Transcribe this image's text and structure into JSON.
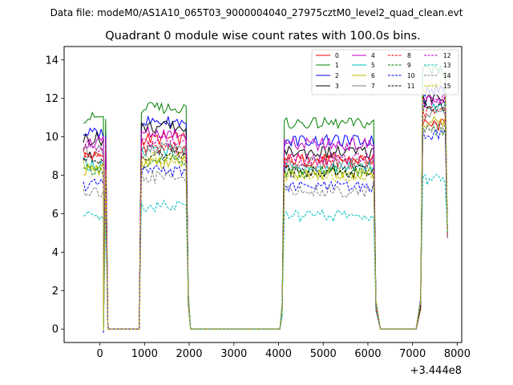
{
  "chart_data": {
    "type": "line",
    "suptitle": "Data file: modeM0/AS1A10_065T03_9000004040_27975cztM0_level2_quad_clean.evt",
    "title": "Quadrant 0 module wise count rates with 100.0s bins.",
    "xlabel": "",
    "ylabel": "",
    "x_offset_label": "+3.444e8",
    "xlim": [
      -800,
      8100
    ],
    "ylim": [
      -0.7,
      14.7
    ],
    "xticks": [
      0,
      1000,
      2000,
      3000,
      4000,
      5000,
      6000,
      7000,
      8000
    ],
    "xtick_labels": [
      "0",
      "1000",
      "2000",
      "3000",
      "4000",
      "5000",
      "6000",
      "7000",
      "8000"
    ],
    "yticks": [
      0,
      2,
      4,
      6,
      8,
      10,
      12,
      14
    ],
    "ytick_labels": [
      "0",
      "2",
      "4",
      "6",
      "8",
      "10",
      "12",
      "14"
    ],
    "legend_location": "upper right",
    "bins": {
      "segments": [
        {
          "start": -370,
          "end": 130,
          "step": 50
        },
        {
          "start": 930,
          "end": 1930,
          "step": 50
        },
        {
          "start": 4130,
          "end": 6130,
          "step": 50
        },
        {
          "start": 7230,
          "end": 7730,
          "step": 50
        }
      ],
      "edge_values": [
        [
          80,
          0.1
        ],
        [
          180,
          0
        ],
        [
          880,
          0
        ],
        [
          1980,
          1.6
        ],
        [
          2030,
          0
        ],
        [
          4030,
          0
        ],
        [
          4080,
          1
        ],
        [
          6180,
          1.2
        ],
        [
          6280,
          0
        ],
        [
          7080,
          0
        ],
        [
          7180,
          1.3
        ],
        [
          7780,
          5
        ]
      ]
    },
    "series": [
      {
        "name": "0",
        "color": "#ff0000",
        "dashed": false,
        "levels": [
          9.0,
          9.9,
          8.8,
          10.6
        ],
        "amp": 0.35
      },
      {
        "name": "1",
        "color": "#008000",
        "dashed": false,
        "levels": [
          11.0,
          11.5,
          10.7,
          13.4
        ],
        "amp": 0.3
      },
      {
        "name": "2",
        "color": "#0000ff",
        "dashed": false,
        "levels": [
          10.2,
          10.8,
          9.8,
          12.4
        ],
        "amp": 0.3
      },
      {
        "name": "3",
        "color": "#000000",
        "dashed": false,
        "levels": [
          9.9,
          10.5,
          9.2,
          12.0
        ],
        "amp": 0.35
      },
      {
        "name": "4",
        "color": "#bf00bf",
        "dashed": false,
        "levels": [
          9.7,
          10.2,
          9.6,
          11.8
        ],
        "amp": 0.35
      },
      {
        "name": "5",
        "color": "#00bfbf",
        "dashed": false,
        "levels": [
          8.6,
          9.3,
          8.4,
          11.6
        ],
        "amp": 0.35
      },
      {
        "name": "6",
        "color": "#bfbf00",
        "dashed": false,
        "levels": [
          8.3,
          8.7,
          8.1,
          10.7
        ],
        "amp": 0.35
      },
      {
        "name": "7",
        "color": "#808080",
        "dashed": false,
        "levels": [
          9.3,
          9.4,
          8.6,
          11.1
        ],
        "amp": 0.35
      },
      {
        "name": "8",
        "color": "#ff0000",
        "dashed": true,
        "levels": [
          9.1,
          9.4,
          8.7,
          11.3
        ],
        "amp": 0.35
      },
      {
        "name": "9",
        "color": "#008000",
        "dashed": true,
        "levels": [
          8.2,
          8.7,
          8.2,
          10.4
        ],
        "amp": 0.35
      },
      {
        "name": "10",
        "color": "#0000ff",
        "dashed": true,
        "levels": [
          7.5,
          8.2,
          7.4,
          10.1
        ],
        "amp": 0.3
      },
      {
        "name": "11",
        "color": "#000000",
        "dashed": true,
        "levels": [
          8.9,
          9.1,
          8.2,
          11.6
        ],
        "amp": 0.35
      },
      {
        "name": "12",
        "color": "#bf00bf",
        "dashed": true,
        "levels": [
          9.5,
          9.7,
          8.8,
          11.9
        ],
        "amp": 0.35
      },
      {
        "name": "13",
        "color": "#00bfbf",
        "dashed": true,
        "levels": [
          5.9,
          6.4,
          5.9,
          7.8
        ],
        "amp": 0.3
      },
      {
        "name": "14",
        "color": "#808080",
        "dashed": true,
        "levels": [
          7.2,
          7.9,
          7.2,
          10.5
        ],
        "amp": 0.35
      },
      {
        "name": "15",
        "color": "#bfbf00",
        "dashed": true,
        "levels": [
          8.4,
          8.9,
          8.0,
          12.6
        ],
        "amp": 0.35
      }
    ]
  }
}
